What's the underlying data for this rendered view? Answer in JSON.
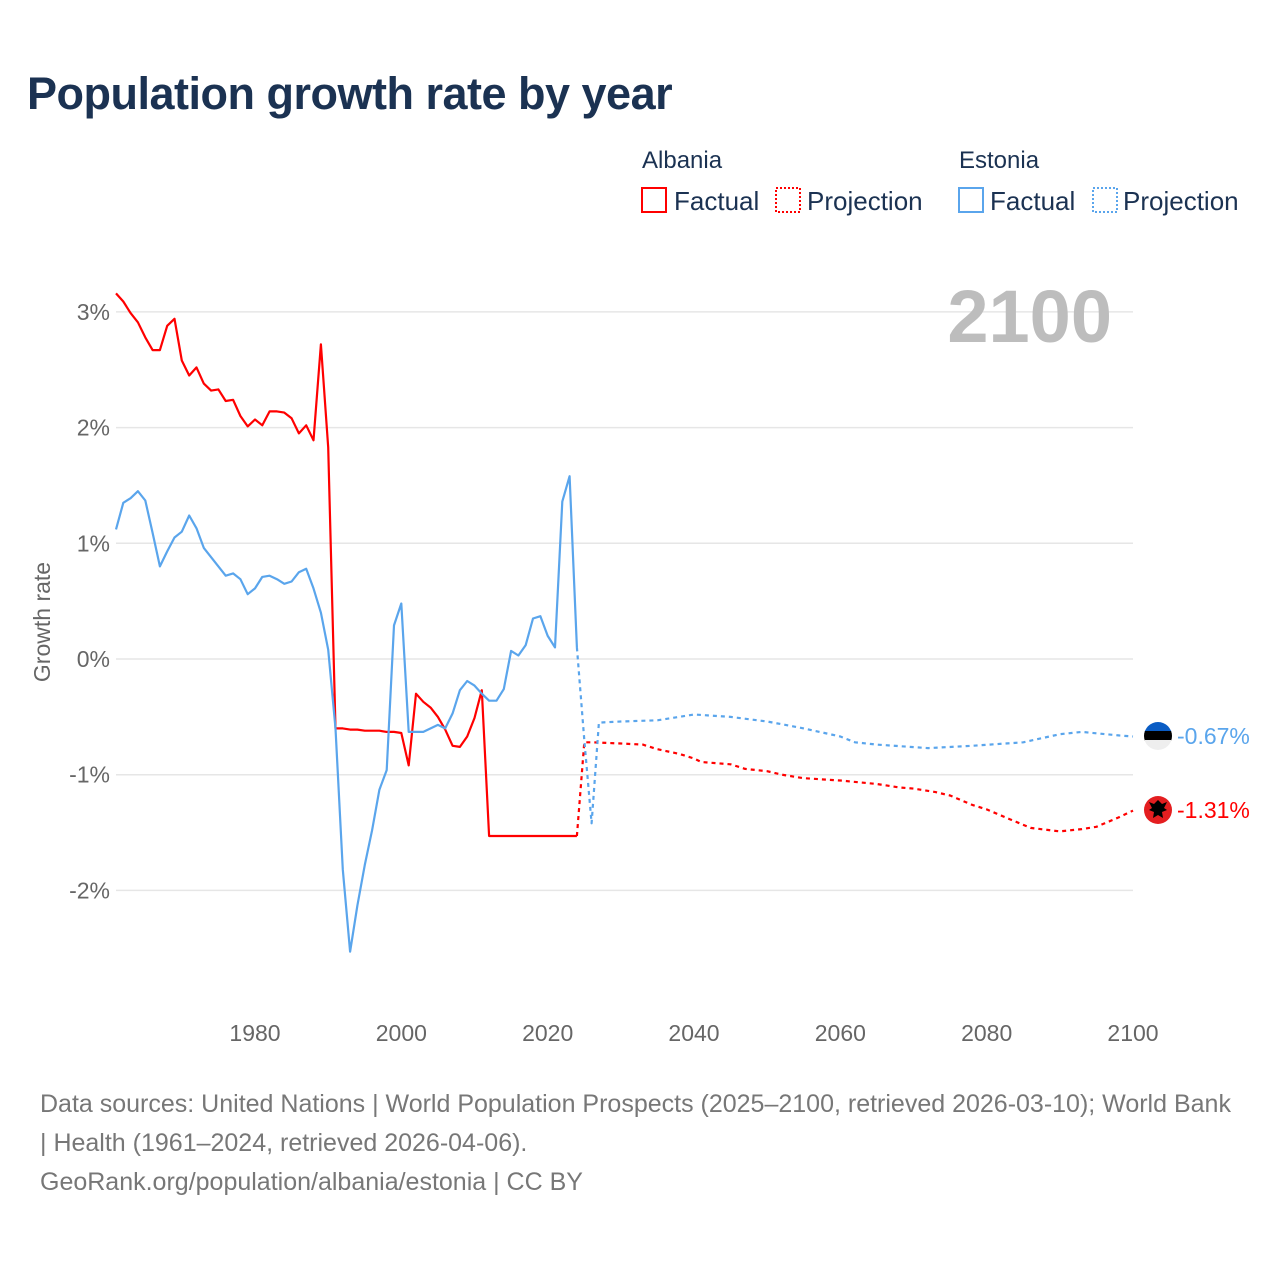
{
  "title": "Population growth rate by year",
  "legend": {
    "groups": [
      {
        "name": "Albania",
        "factual": "Factual",
        "projection": "Projection",
        "color": "#ff0000"
      },
      {
        "name": "Estonia",
        "factual": "Factual",
        "projection": "Projection",
        "color": "#5aa5ec"
      }
    ]
  },
  "year_display": "2100",
  "end_labels": {
    "estonia": "-0.67%",
    "albania": "-1.31%"
  },
  "flags": {
    "estonia": "estonia-flag-icon",
    "albania": "albania-flag-icon"
  },
  "footer": {
    "sources": "Data sources: United Nations | World Population Prospects (2025–2100, retrieved 2026-03-10); World Bank | Health (1961–2024, retrieved 2026-04-06).",
    "credit": "GeoRank.org/population/albania/estonia | CC BY"
  },
  "chart_data": {
    "type": "line",
    "title": "Population growth rate by year",
    "xlabel": "",
    "ylabel": "Growth rate",
    "xlim": [
      1961,
      2100
    ],
    "ylim": [
      -3,
      3.2
    ],
    "x_ticks": [
      1980,
      2000,
      2020,
      2040,
      2060,
      2080,
      2100
    ],
    "y_ticks": [
      3,
      2,
      1,
      0,
      -1,
      -2
    ],
    "y_tick_labels": [
      "3%",
      "2%",
      "1%",
      "0%",
      "-1%",
      "-2%"
    ],
    "grid": true,
    "legend_position": "top-right",
    "series": [
      {
        "name": "Albania Factual",
        "color": "#ff0000",
        "style": "solid",
        "points": [
          [
            1961,
            3.16
          ],
          [
            1962,
            3.09
          ],
          [
            1963,
            2.99
          ],
          [
            1964,
            2.91
          ],
          [
            1965,
            2.78
          ],
          [
            1966,
            2.67
          ],
          [
            1967,
            2.67
          ],
          [
            1968,
            2.88
          ],
          [
            1969,
            2.94
          ],
          [
            1970,
            2.58
          ],
          [
            1971,
            2.45
          ],
          [
            1972,
            2.52
          ],
          [
            1973,
            2.38
          ],
          [
            1974,
            2.32
          ],
          [
            1975,
            2.33
          ],
          [
            1976,
            2.23
          ],
          [
            1977,
            2.24
          ],
          [
            1978,
            2.1
          ],
          [
            1979,
            2.01
          ],
          [
            1980,
            2.07
          ],
          [
            1981,
            2.02
          ],
          [
            1982,
            2.14
          ],
          [
            1983,
            2.14
          ],
          [
            1984,
            2.13
          ],
          [
            1985,
            2.08
          ],
          [
            1986,
            1.95
          ],
          [
            1987,
            2.02
          ],
          [
            1988,
            1.89
          ],
          [
            1989,
            2.72
          ],
          [
            1990,
            1.83
          ],
          [
            1991,
            -0.6
          ],
          [
            1992,
            -0.6
          ],
          [
            1993,
            -0.61
          ],
          [
            1994,
            -0.61
          ],
          [
            1995,
            -0.62
          ],
          [
            1996,
            -0.62
          ],
          [
            1997,
            -0.62
          ],
          [
            1998,
            -0.63
          ],
          [
            1999,
            -0.63
          ],
          [
            2000,
            -0.64
          ],
          [
            2001,
            -0.92
          ],
          [
            2002,
            -0.3
          ],
          [
            2003,
            -0.37
          ],
          [
            2004,
            -0.42
          ],
          [
            2005,
            -0.5
          ],
          [
            2006,
            -0.61
          ],
          [
            2007,
            -0.75
          ],
          [
            2008,
            -0.76
          ],
          [
            2009,
            -0.67
          ],
          [
            2010,
            -0.51
          ],
          [
            2011,
            -0.27
          ],
          [
            2012,
            -1.53
          ],
          [
            2024,
            -1.53
          ]
        ]
      },
      {
        "name": "Albania Projection",
        "color": "#ff0000",
        "style": "dotted",
        "points": [
          [
            2024,
            -1.53
          ],
          [
            2025,
            -0.72
          ],
          [
            2026,
            -0.72
          ],
          [
            2030,
            -0.73
          ],
          [
            2033,
            -0.74
          ],
          [
            2035,
            -0.78
          ],
          [
            2038,
            -0.82
          ],
          [
            2040,
            -0.86
          ],
          [
            2041,
            -0.89
          ],
          [
            2045,
            -0.91
          ],
          [
            2047,
            -0.95
          ],
          [
            2050,
            -0.97
          ],
          [
            2052,
            -1.0
          ],
          [
            2055,
            -1.03
          ],
          [
            2060,
            -1.05
          ],
          [
            2065,
            -1.08
          ],
          [
            2068,
            -1.11
          ],
          [
            2070,
            -1.12
          ],
          [
            2073,
            -1.15
          ],
          [
            2075,
            -1.18
          ],
          [
            2078,
            -1.26
          ],
          [
            2080,
            -1.3
          ],
          [
            2083,
            -1.38
          ],
          [
            2086,
            -1.46
          ],
          [
            2090,
            -1.49
          ],
          [
            2093,
            -1.47
          ],
          [
            2095,
            -1.45
          ],
          [
            2098,
            -1.37
          ],
          [
            2100,
            -1.31
          ]
        ]
      },
      {
        "name": "Estonia Factual",
        "color": "#5aa5ec",
        "style": "solid",
        "points": [
          [
            1961,
            1.12
          ],
          [
            1962,
            1.35
          ],
          [
            1963,
            1.39
          ],
          [
            1964,
            1.45
          ],
          [
            1965,
            1.37
          ],
          [
            1966,
            1.09
          ],
          [
            1967,
            0.8
          ],
          [
            1968,
            0.93
          ],
          [
            1969,
            1.05
          ],
          [
            1970,
            1.1
          ],
          [
            1971,
            1.24
          ],
          [
            1972,
            1.13
          ],
          [
            1973,
            0.96
          ],
          [
            1974,
            0.88
          ],
          [
            1975,
            0.8
          ],
          [
            1976,
            0.72
          ],
          [
            1977,
            0.74
          ],
          [
            1978,
            0.69
          ],
          [
            1979,
            0.56
          ],
          [
            1980,
            0.61
          ],
          [
            1981,
            0.71
          ],
          [
            1982,
            0.72
          ],
          [
            1983,
            0.69
          ],
          [
            1984,
            0.65
          ],
          [
            1985,
            0.67
          ],
          [
            1986,
            0.75
          ],
          [
            1987,
            0.78
          ],
          [
            1988,
            0.61
          ],
          [
            1989,
            0.4
          ],
          [
            1990,
            0.08
          ],
          [
            1991,
            -0.6
          ],
          [
            1992,
            -1.82
          ],
          [
            1993,
            -2.53
          ],
          [
            1994,
            -2.13
          ],
          [
            1995,
            -1.78
          ],
          [
            1996,
            -1.48
          ],
          [
            1997,
            -1.13
          ],
          [
            1998,
            -0.96
          ],
          [
            1999,
            0.29
          ],
          [
            2000,
            0.48
          ],
          [
            2001,
            -0.63
          ],
          [
            2002,
            -0.63
          ],
          [
            2003,
            -0.63
          ],
          [
            2004,
            -0.6
          ],
          [
            2005,
            -0.57
          ],
          [
            2006,
            -0.6
          ],
          [
            2007,
            -0.47
          ],
          [
            2008,
            -0.27
          ],
          [
            2009,
            -0.19
          ],
          [
            2010,
            -0.23
          ],
          [
            2011,
            -0.3
          ],
          [
            2012,
            -0.36
          ],
          [
            2013,
            -0.36
          ],
          [
            2014,
            -0.26
          ],
          [
            2015,
            0.07
          ],
          [
            2016,
            0.03
          ],
          [
            2017,
            0.12
          ],
          [
            2018,
            0.35
          ],
          [
            2019,
            0.37
          ],
          [
            2020,
            0.2
          ],
          [
            2021,
            0.1
          ],
          [
            2022,
            1.36
          ],
          [
            2023,
            1.58
          ],
          [
            2024,
            0.1
          ]
        ]
      },
      {
        "name": "Estonia Projection",
        "color": "#5aa5ec",
        "style": "dotted",
        "points": [
          [
            2024,
            0.1
          ],
          [
            2025,
            -0.7
          ],
          [
            2026,
            -1.42
          ],
          [
            2027,
            -0.55
          ],
          [
            2030,
            -0.54
          ],
          [
            2035,
            -0.53
          ],
          [
            2040,
            -0.48
          ],
          [
            2045,
            -0.5
          ],
          [
            2050,
            -0.54
          ],
          [
            2055,
            -0.6
          ],
          [
            2060,
            -0.67
          ],
          [
            2062,
            -0.72
          ],
          [
            2065,
            -0.74
          ],
          [
            2072,
            -0.77
          ],
          [
            2078,
            -0.75
          ],
          [
            2085,
            -0.72
          ],
          [
            2090,
            -0.65
          ],
          [
            2093,
            -0.63
          ],
          [
            2098,
            -0.66
          ],
          [
            2100,
            -0.67
          ]
        ]
      }
    ]
  }
}
